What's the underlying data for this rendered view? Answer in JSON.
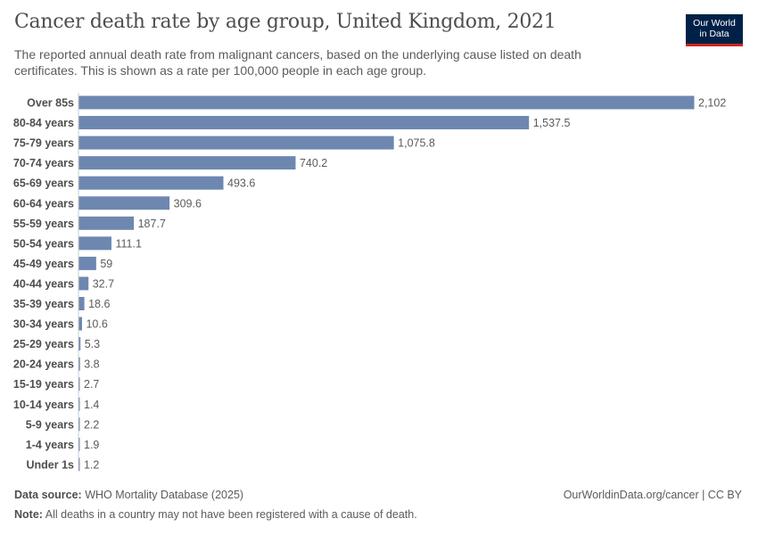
{
  "header": {
    "title": "Cancer death rate by age group, United Kingdom, 2021",
    "subtitle": "The reported annual death rate from malignant cancers, based on the underlying cause listed on death certificates. This is shown as a rate per 100,000 people in each age group.",
    "logo_line1": "Our World",
    "logo_line2": "in Data"
  },
  "chart_data": {
    "type": "bar",
    "orientation": "horizontal",
    "categories": [
      "Over 85s",
      "80-84 years",
      "75-79 years",
      "70-74 years",
      "65-69 years",
      "60-64 years",
      "55-59 years",
      "50-54 years",
      "45-49 years",
      "40-44 years",
      "35-39 years",
      "30-34 years",
      "25-29 years",
      "20-24 years",
      "15-19 years",
      "10-14 years",
      "5-9 years",
      "1-4 years",
      "Under 1s"
    ],
    "values": [
      2102,
      1537.5,
      1075.8,
      740.2,
      493.6,
      309.6,
      187.7,
      111.1,
      59,
      32.7,
      18.6,
      10.6,
      5.3,
      3.8,
      2.7,
      1.4,
      2.2,
      1.9,
      1.2
    ],
    "value_labels": [
      "2,102",
      "1,537.5",
      "1,075.8",
      "740.2",
      "493.6",
      "309.6",
      "187.7",
      "111.1",
      "59",
      "32.7",
      "18.6",
      "10.6",
      "5.3",
      "3.8",
      "2.7",
      "1.4",
      "2.2",
      "1.9",
      "1.2"
    ],
    "bar_color": "#6d87b0",
    "grid": false
  },
  "footer": {
    "source_label": "Data source:",
    "source_text": "WHO Mortality Database (2025)",
    "url": "OurWorldinData.org/cancer | CC BY",
    "note_label": "Note:",
    "note_text": "All deaths in a country may not have been registered with a cause of death."
  }
}
